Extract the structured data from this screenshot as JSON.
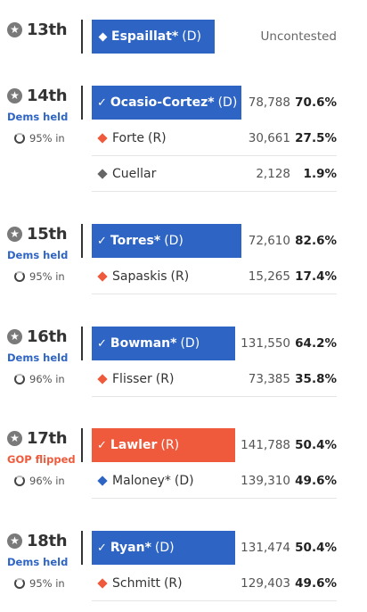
{
  "colors": {
    "dem": "#2e64c3",
    "rep": "#f05a3c",
    "ind": "#666666",
    "dem_status": "#2e64c3",
    "gop_status": "#f05a3c"
  },
  "races": [
    {
      "district": "13th",
      "status": "",
      "reporting": "",
      "candidates": [
        {
          "name": "Espaillat*",
          "party": "(D)",
          "winner": true,
          "marker": "diamond",
          "uncontested_text": "Uncontested"
        }
      ]
    },
    {
      "district": "14th",
      "status": "Dems held",
      "reporting": "95% in",
      "candidates": [
        {
          "name": "Ocasio-Cortez*",
          "party": "(D)",
          "winner": true,
          "votes": "78,788",
          "pct": "70.6%"
        },
        {
          "name": "Forte",
          "party": "(R)",
          "winner": false,
          "votes": "30,661",
          "pct": "27.5%"
        },
        {
          "name": "Cuellar",
          "party": "",
          "winner": false,
          "votes": "2,128",
          "pct": "1.9%"
        }
      ]
    },
    {
      "district": "15th",
      "status": "Dems held",
      "reporting": "95% in",
      "candidates": [
        {
          "name": "Torres*",
          "party": "(D)",
          "winner": true,
          "votes": "72,610",
          "pct": "82.6%"
        },
        {
          "name": "Sapaskis",
          "party": "(R)",
          "winner": false,
          "votes": "15,265",
          "pct": "17.4%"
        }
      ]
    },
    {
      "district": "16th",
      "status": "Dems held",
      "reporting": "96% in",
      "candidates": [
        {
          "name": "Bowman*",
          "party": "(D)",
          "winner": true,
          "votes": "131,550",
          "pct": "64.2%"
        },
        {
          "name": "Flisser",
          "party": "(R)",
          "winner": false,
          "votes": "73,385",
          "pct": "35.8%"
        }
      ]
    },
    {
      "district": "17th",
      "status": "GOP flipped",
      "reporting": "96% in",
      "candidates": [
        {
          "name": "Lawler",
          "party": "(R)",
          "winner": true,
          "votes": "141,788",
          "pct": "50.4%"
        },
        {
          "name": "Maloney*",
          "party": "(D)",
          "winner": false,
          "votes": "139,310",
          "pct": "49.6%"
        }
      ]
    },
    {
      "district": "18th",
      "status": "Dems held",
      "reporting": "95% in",
      "candidates": [
        {
          "name": "Ryan*",
          "party": "(D)",
          "winner": true,
          "votes": "131,474",
          "pct": "50.4%"
        },
        {
          "name": "Schmitt",
          "party": "(R)",
          "winner": false,
          "votes": "129,403",
          "pct": "49.6%"
        }
      ]
    }
  ]
}
